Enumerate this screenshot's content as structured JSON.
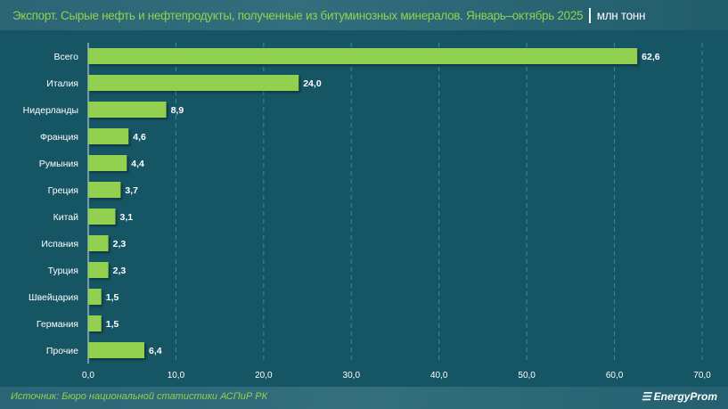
{
  "header": {
    "title": "Экспорт. Сырые нефть и нефтепродукты, полученные из битуминозных минералов. Январь–октябрь 2025",
    "unit": "млн тонн"
  },
  "footer": {
    "source": "Источник: Бюро национальной статистики АСПиР РК",
    "logo": "EnergyProm"
  },
  "chart_data": {
    "type": "bar",
    "orientation": "horizontal",
    "categories": [
      "Всего",
      "Италия",
      "Нидерланды",
      "Франция",
      "Румыния",
      "Греция",
      "Китай",
      "Испания",
      "Турция",
      "Швейцария",
      "Германия",
      "Прочие"
    ],
    "values": [
      62.6,
      24.0,
      8.9,
      4.6,
      4.4,
      3.7,
      3.1,
      2.3,
      2.3,
      1.5,
      1.5,
      6.4
    ],
    "labels": [
      "62,6",
      "24,0",
      "8,9",
      "4,6",
      "4,4",
      "3,7",
      "3,1",
      "2,3",
      "2,3",
      "1,5",
      "1,5",
      "6,4"
    ],
    "xlim": [
      0,
      70
    ],
    "xticks": [
      "0,0",
      "10,0",
      "20,0",
      "30,0",
      "40,0",
      "50,0",
      "60,0",
      "70,0"
    ],
    "grid": "vertical dashed",
    "bar_color": "#92d050"
  }
}
